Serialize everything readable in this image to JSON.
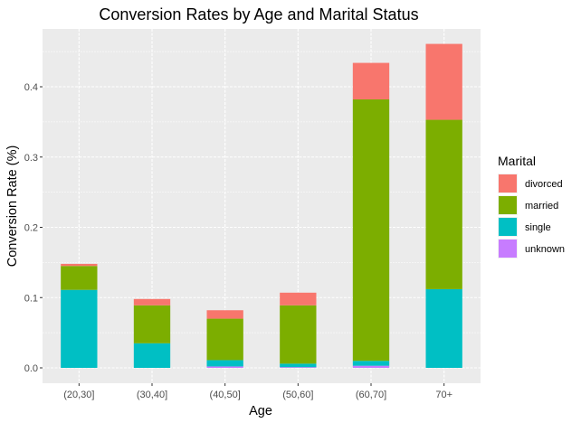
{
  "chart_data": {
    "type": "bar",
    "stacked": true,
    "title": "Conversion Rates by Age and Marital Status",
    "xlabel": "Age",
    "ylabel": "Conversion Rate (%)",
    "categories": [
      "(20,30]",
      "(30,40]",
      "(40,50]",
      "(50,60]",
      "(60,70]",
      "70+"
    ],
    "ylim": [
      0,
      0.48
    ],
    "yticks": [
      0.0,
      0.1,
      0.2,
      0.3,
      0.4
    ],
    "ytick_labels": [
      "0.0",
      "0.1",
      "0.2",
      "0.3",
      "0.4"
    ],
    "grid": true,
    "legend": {
      "title": "Marital",
      "position": "right"
    },
    "series": [
      {
        "name": "divorced",
        "color": "#F8766D",
        "values": [
          0.003,
          0.009,
          0.012,
          0.018,
          0.052,
          0.108
        ]
      },
      {
        "name": "married",
        "color": "#7CAE00",
        "values": [
          0.034,
          0.054,
          0.059,
          0.083,
          0.372,
          0.241
        ]
      },
      {
        "name": "single",
        "color": "#00BFC4",
        "values": [
          0.111,
          0.035,
          0.009,
          0.005,
          0.007,
          0.112
        ]
      },
      {
        "name": "unknown",
        "color": "#C77CFF",
        "values": [
          0.0,
          0.0,
          0.002,
          0.001,
          0.003,
          0.0
        ]
      }
    ],
    "stack_order_bottom_to_top": [
      "unknown",
      "single",
      "married",
      "divorced"
    ]
  }
}
